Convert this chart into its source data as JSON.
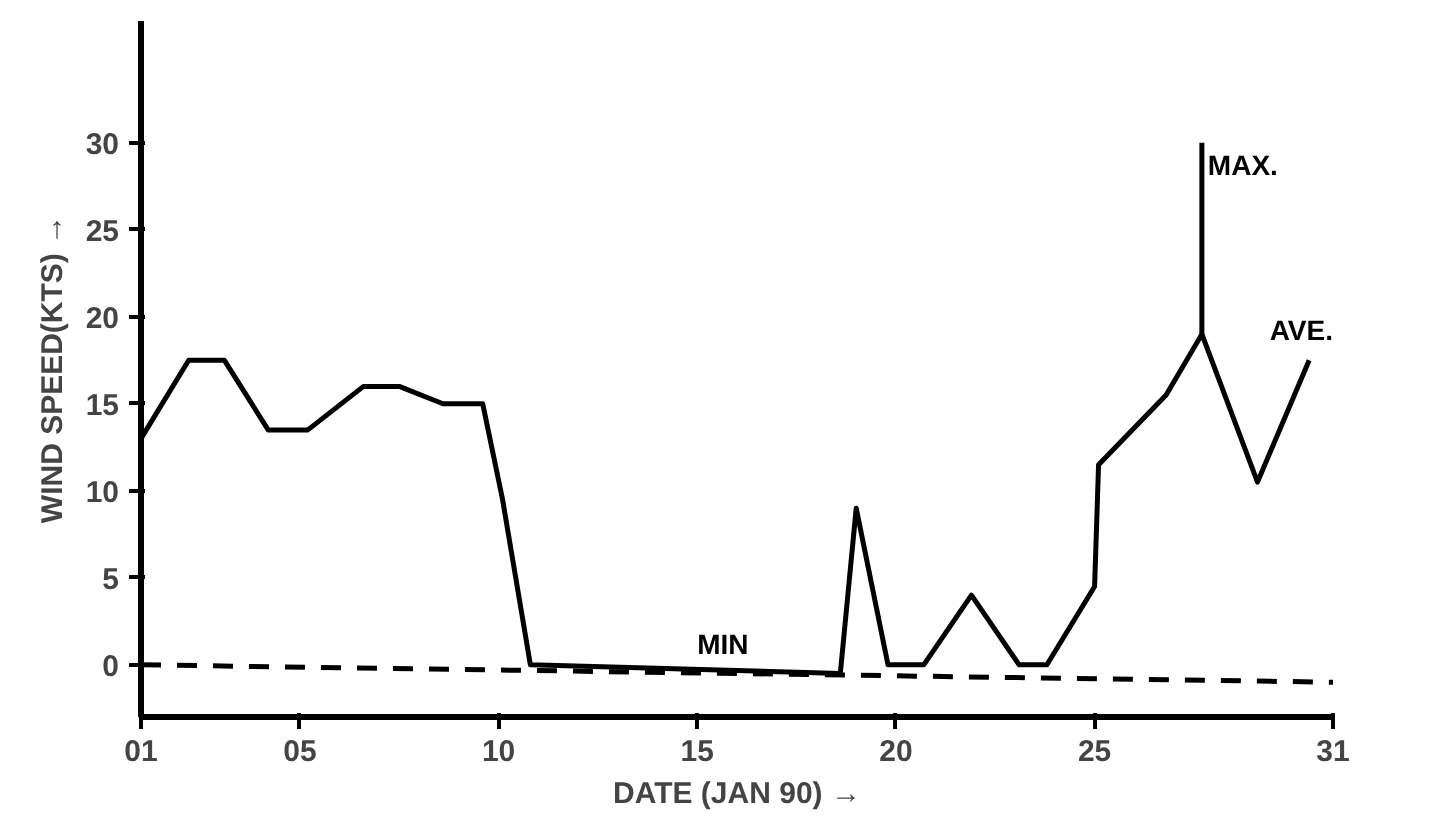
{
  "chart_data": {
    "type": "line",
    "xlabel": "DATE (JAN 90) →",
    "ylabel": "WIND SPEED(KTS) →",
    "xlim": [
      1,
      31
    ],
    "ylim": [
      -3,
      37
    ],
    "xticks": [
      {
        "value": 1,
        "label": "01"
      },
      {
        "value": 5,
        "label": "05"
      },
      10,
      15,
      20,
      25,
      31
    ],
    "yticks": [
      0,
      5,
      10,
      15,
      20,
      25,
      30
    ],
    "grid": false,
    "legend": false,
    "marker": "none",
    "series": [
      {
        "name": "AVE.",
        "color": "#000000",
        "line_style": "solid",
        "x": [
          1,
          2.2,
          3.1,
          4.2,
          5.2,
          6.6,
          7.5,
          8.6,
          9.6,
          10.1,
          10.8,
          18.6,
          19,
          19.8,
          20.7,
          21.9,
          23.1,
          23.8,
          25,
          25.1,
          26.8,
          27.7,
          29.1,
          30.4
        ],
        "values": [
          13,
          17.5,
          17.5,
          13.5,
          13.5,
          16,
          16,
          15,
          15,
          9.5,
          0,
          -0.5,
          9,
          0,
          0,
          4,
          0,
          0,
          4.5,
          11.5,
          15.5,
          19,
          10.5,
          17.5
        ]
      },
      {
        "name": "MAX.",
        "color": "#000000",
        "line_style": "solid",
        "x": [
          27.7,
          27.7
        ],
        "values": [
          19,
          30
        ]
      },
      {
        "name": "MIN",
        "color": "#000000",
        "line_style": "dashed",
        "x": [
          1,
          31
        ],
        "values": [
          0,
          -1
        ]
      }
    ]
  }
}
